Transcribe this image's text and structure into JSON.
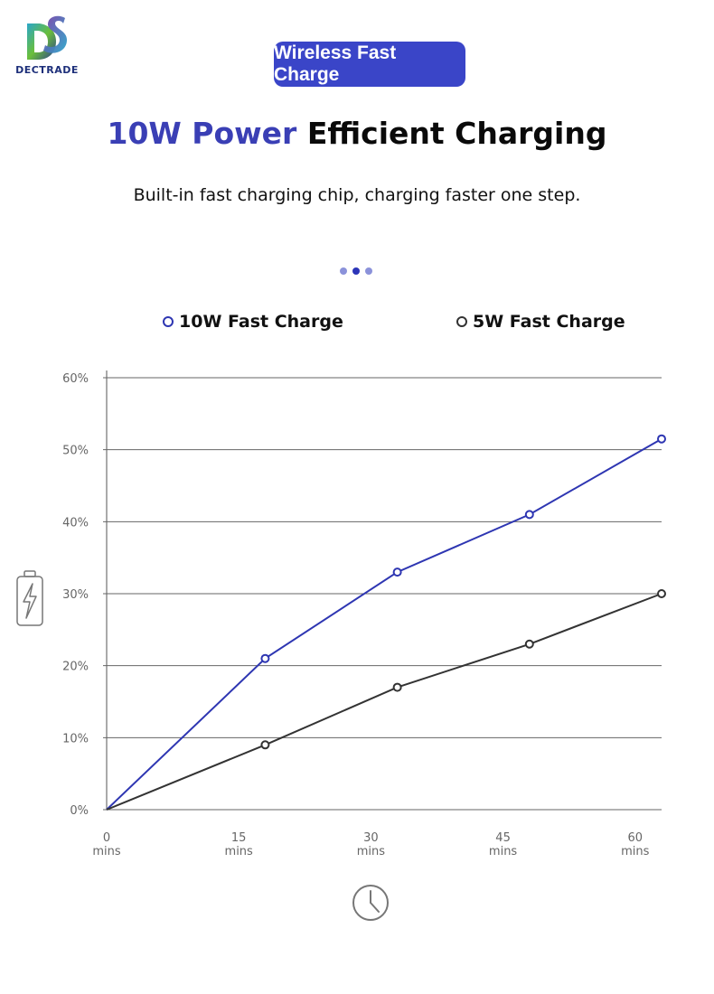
{
  "brand": {
    "name": "DECTRADE"
  },
  "badge": {
    "label": "Wireless Fast Charge"
  },
  "headline": {
    "accent": "10W Power",
    "rest": "Efficient Charging"
  },
  "subtitle": "Built-in fast charging chip, charging faster one step.",
  "colors": {
    "accent": "#3a3fb5",
    "badge": "#3a45c8",
    "series_10w": "#2e36b2",
    "series_5w": "#333333",
    "grid": "#666666"
  },
  "icons": {
    "battery": "battery-charging-icon",
    "clock": "clock-icon"
  },
  "chart_data": {
    "type": "line",
    "title": "",
    "xlabel": "",
    "ylabel": "",
    "x_ticks": [
      {
        "value": "0",
        "unit": "mins"
      },
      {
        "value": "15",
        "unit": "mins"
      },
      {
        "value": "30",
        "unit": "mins"
      },
      {
        "value": "45",
        "unit": "mins"
      },
      {
        "value": "60",
        "unit": "mins"
      }
    ],
    "y_ticks": [
      "0%",
      "10%",
      "20%",
      "30%",
      "40%",
      "50%",
      "60%"
    ],
    "xlim": [
      0,
      63
    ],
    "ylim": [
      0,
      60
    ],
    "legend_position": "top",
    "series": [
      {
        "name": "10W Fast Charge",
        "x": [
          0,
          15,
          30,
          45,
          60
        ],
        "values": [
          0,
          21,
          33,
          41,
          51.5
        ]
      },
      {
        "name": "5W Fast Charge",
        "x": [
          0,
          15,
          30,
          45,
          60
        ],
        "values": [
          0,
          9,
          17,
          23,
          30
        ]
      }
    ]
  }
}
